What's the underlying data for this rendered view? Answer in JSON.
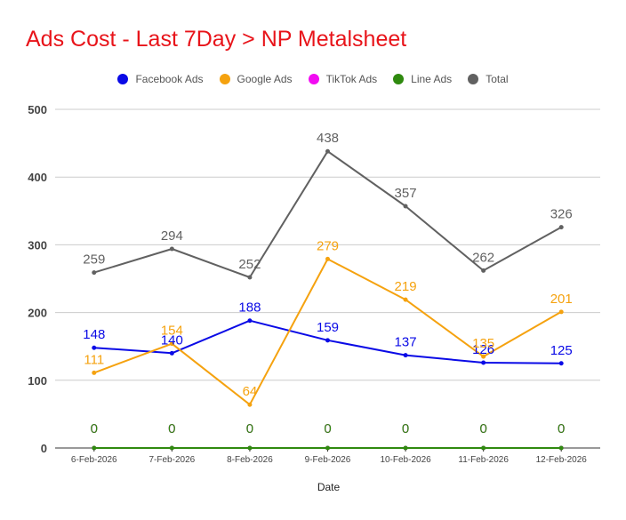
{
  "chart_data": {
    "type": "line",
    "title": "Ads Cost - Last 7Day > NP Metalsheet",
    "xlabel": "Date",
    "ylabel": "",
    "ylim": [
      0,
      500
    ],
    "yticks": [
      0,
      100,
      200,
      300,
      400,
      500
    ],
    "grid": true,
    "legend_position": "top",
    "categories": [
      "6-Feb-2026",
      "7-Feb-2026",
      "8-Feb-2026",
      "9-Feb-2026",
      "10-Feb-2026",
      "11-Feb-2026",
      "12-Feb-2026"
    ],
    "series": [
      {
        "name": "Facebook Ads",
        "color": "#0a0ae6",
        "values": [
          148,
          140,
          188,
          159,
          137,
          126,
          125
        ]
      },
      {
        "name": "Google Ads",
        "color": "#f5a20f",
        "values": [
          111,
          154,
          64,
          279,
          219,
          135,
          201
        ]
      },
      {
        "name": "TikTok Ads",
        "color": "#f20cf2",
        "values": [
          0,
          0,
          0,
          0,
          0,
          0,
          0
        ]
      },
      {
        "name": "Line Ads",
        "color": "#2f8a0f",
        "values": [
          0,
          0,
          0,
          0,
          0,
          0,
          0
        ]
      },
      {
        "name": "Total",
        "color": "#616161",
        "values": [
          259,
          294,
          252,
          438,
          357,
          262,
          326
        ]
      }
    ]
  }
}
